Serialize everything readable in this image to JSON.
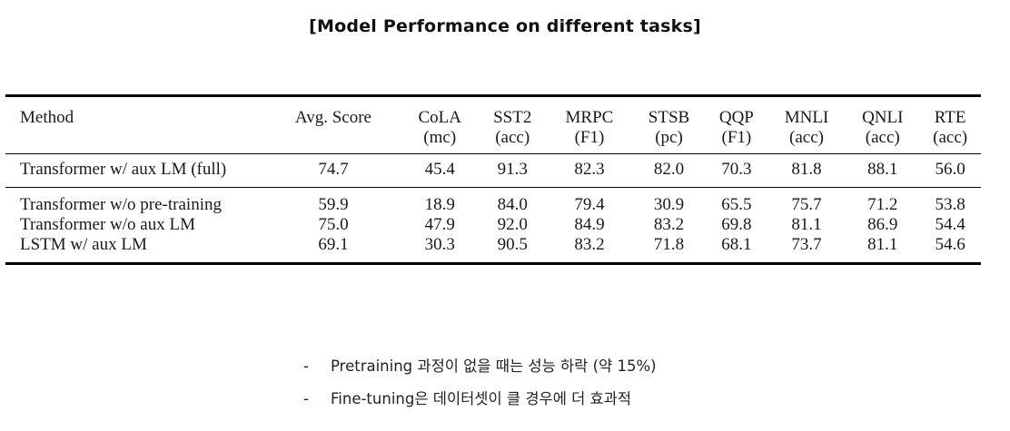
{
  "slide": {
    "title": "[Model Performance on different tasks]"
  },
  "table": {
    "columns": [
      {
        "name": "Method",
        "sub": ""
      },
      {
        "name": "Avg. Score",
        "sub": ""
      },
      {
        "name": "CoLA",
        "sub": "(mc)"
      },
      {
        "name": "SST2",
        "sub": "(acc)"
      },
      {
        "name": "MRPC",
        "sub": "(F1)"
      },
      {
        "name": "STSB",
        "sub": "(pc)"
      },
      {
        "name": "QQP",
        "sub": "(F1)"
      },
      {
        "name": "MNLI",
        "sub": "(acc)"
      },
      {
        "name": "QNLI",
        "sub": "(acc)"
      },
      {
        "name": "RTE",
        "sub": "(acc)"
      }
    ],
    "rows": [
      {
        "method": "Transformer w/ aux LM (full)",
        "values": [
          "74.7",
          "45.4",
          "91.3",
          "82.3",
          "82.0",
          "70.3",
          "81.8",
          "88.1",
          "56.0"
        ],
        "bold": [
          false,
          false,
          false,
          false,
          false,
          true,
          true,
          true,
          true
        ]
      },
      {
        "method": "Transformer w/o pre-training",
        "values": [
          "59.9",
          "18.9",
          "84.0",
          "79.4",
          "30.9",
          "65.5",
          "75.7",
          "71.2",
          "53.8"
        ],
        "bold": [
          false,
          false,
          false,
          false,
          false,
          false,
          false,
          false,
          false
        ]
      },
      {
        "method": "Transformer w/o aux LM",
        "values": [
          "75.0",
          "47.9",
          "92.0",
          "84.9",
          "83.2",
          "69.8",
          "81.1",
          "86.9",
          "54.4"
        ],
        "bold": [
          true,
          true,
          true,
          true,
          true,
          false,
          false,
          false,
          false
        ]
      },
      {
        "method": "LSTM w/ aux LM",
        "values": [
          "69.1",
          "30.3",
          "90.5",
          "83.2",
          "71.8",
          "68.1",
          "73.7",
          "81.1",
          "54.6"
        ],
        "bold": [
          false,
          false,
          false,
          false,
          false,
          false,
          false,
          false,
          false
        ]
      }
    ]
  },
  "notes": {
    "items": [
      {
        "dash": "-",
        "text": "Pretraining 과정이 없을 때는 성능 하락 (약 15%)"
      },
      {
        "dash": "-",
        "text": "Fine-tuning은 데이터셋이 클 경우에 더 효과적"
      }
    ]
  }
}
